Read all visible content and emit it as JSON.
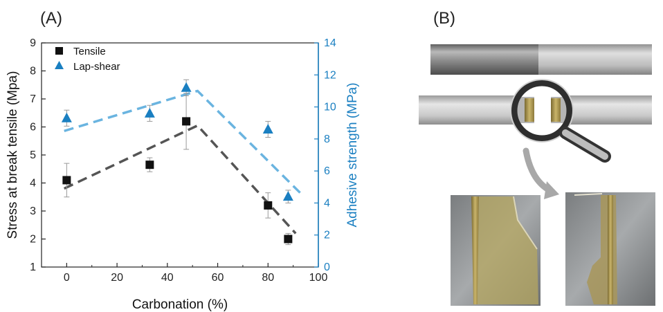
{
  "panels": {
    "a_label": "(A)",
    "b_label": "(B)"
  },
  "colors": {
    "tensile": "#111111",
    "lap_shear": "#1a7fc1",
    "tensile_trend": "#555555",
    "lap_shear_trend": "#6ab4e0",
    "right_axis": "#1a7fc1"
  },
  "icons": [
    "magnifier-icon",
    "curved-arrow-icon"
  ],
  "chart_data": {
    "type": "scatter",
    "xlabel": "Carbonation (%)",
    "ylabel": "Stress at break tensile (Mpa)",
    "y2label": "Adhesive strength (MPa)",
    "xlim": [
      -10,
      100
    ],
    "ylim": [
      1,
      9
    ],
    "y2lim": [
      0,
      14
    ],
    "xticks": [
      0,
      20,
      40,
      60,
      80,
      100
    ],
    "yticks": [
      1,
      2,
      3,
      4,
      5,
      6,
      7,
      8,
      9
    ],
    "y2ticks": [
      0,
      2,
      4,
      6,
      8,
      10,
      12,
      14
    ],
    "legend_position": "top-left",
    "series": [
      {
        "name": "Tensile",
        "axis": "left",
        "marker": "square",
        "x": [
          0,
          33,
          47.5,
          80,
          88
        ],
        "y": [
          4.1,
          4.65,
          6.2,
          3.2,
          2.0
        ],
        "err": [
          0.6,
          0.25,
          1.0,
          0.45,
          0.2
        ]
      },
      {
        "name": "Lap-shear",
        "axis": "right",
        "marker": "triangle",
        "x": [
          0,
          33,
          47.5,
          80,
          88
        ],
        "y": [
          9.3,
          9.6,
          11.2,
          8.6,
          4.4
        ],
        "err": [
          0.5,
          0.5,
          0.5,
          0.5,
          0.4
        ]
      }
    ],
    "trendlines": [
      {
        "series": "Tensile",
        "axis": "left",
        "points": [
          [
            -1,
            3.8
          ],
          [
            52,
            6.05
          ],
          [
            91,
            2.2
          ]
        ]
      },
      {
        "series": "Lap-shear",
        "axis": "right",
        "points": [
          [
            -1,
            8.5
          ],
          [
            52,
            11.0
          ],
          [
            93,
            4.6
          ]
        ]
      }
    ]
  }
}
